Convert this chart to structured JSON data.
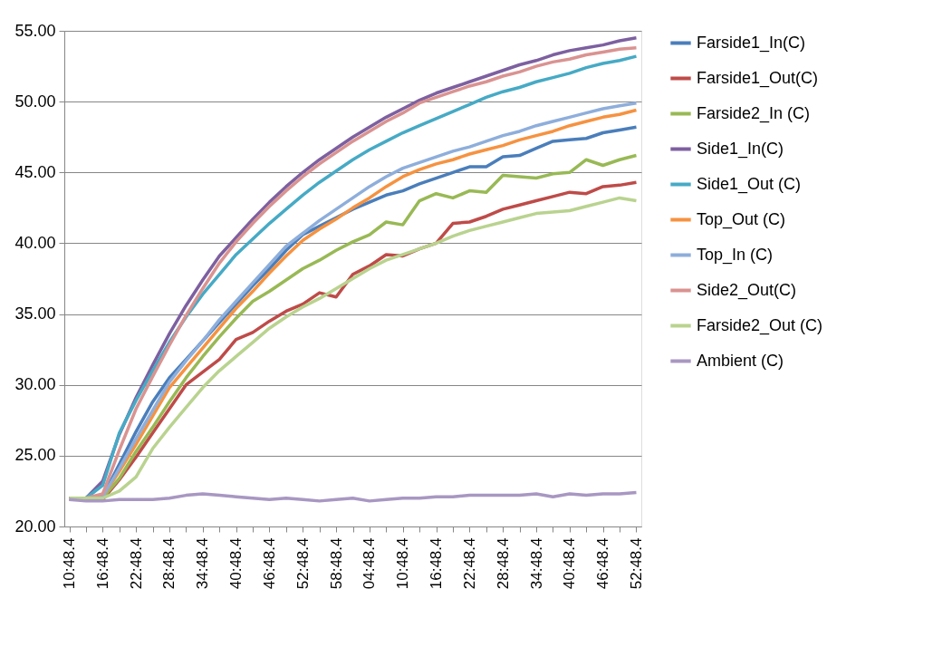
{
  "chart_data": {
    "type": "line",
    "categories": [
      "10:48.4",
      null,
      "16:48.4",
      null,
      "22:48.4",
      null,
      "28:48.4",
      null,
      "34:48.4",
      null,
      "40:48.4",
      null,
      "46:48.4",
      null,
      "52:48.4",
      null,
      "58:48.4",
      null,
      "04:48.4",
      null,
      "10:48.4",
      null,
      "16:48.4",
      null,
      "22:48.4",
      null,
      "28:48.4",
      null,
      "34:48.4",
      null,
      "40:48.4",
      null,
      "46:48.4",
      null,
      "52:48.4"
    ],
    "series": [
      {
        "name": "Farside1_In(C)",
        "color": "#4a7ebb",
        "values": [
          22.0,
          22.0,
          22.1,
          24.4,
          26.7,
          28.8,
          30.5,
          31.8,
          33.1,
          34.4,
          35.7,
          37.0,
          38.2,
          39.5,
          40.6,
          41.2,
          41.8,
          42.4,
          42.9,
          43.4,
          43.7,
          44.2,
          44.6,
          45.0,
          45.4,
          45.4,
          46.1,
          46.2,
          46.7,
          47.2,
          47.3,
          47.4,
          47.8,
          48.0,
          48.2
        ]
      },
      {
        "name": "Farside1_Out(C)",
        "color": "#be4b48",
        "values": [
          21.9,
          21.9,
          21.9,
          23.3,
          24.9,
          26.6,
          28.3,
          30.0,
          30.9,
          31.8,
          33.2,
          33.7,
          34.5,
          35.2,
          35.7,
          36.5,
          36.2,
          37.8,
          38.4,
          39.2,
          39.1,
          39.6,
          40.0,
          41.4,
          41.5,
          41.9,
          42.4,
          42.7,
          43.0,
          43.3,
          43.6,
          43.5,
          44.0,
          44.1,
          44.3
        ]
      },
      {
        "name": "Farside2_In (C)",
        "color": "#98b954",
        "values": [
          22.0,
          22.0,
          22.0,
          23.4,
          25.3,
          27.0,
          28.8,
          30.5,
          32.0,
          33.4,
          34.7,
          35.9,
          36.6,
          37.4,
          38.2,
          38.8,
          39.5,
          40.1,
          40.6,
          41.5,
          41.3,
          43.0,
          43.5,
          43.2,
          43.7,
          43.6,
          44.8,
          44.7,
          44.6,
          44.9,
          45.0,
          45.9,
          45.5,
          45.9,
          46.2
        ]
      },
      {
        "name": "Side1_In(C)",
        "color": "#7d60a0",
        "values": [
          22.0,
          22.0,
          23.2,
          26.5,
          29.1,
          31.4,
          33.6,
          35.6,
          37.4,
          39.1,
          40.4,
          41.7,
          42.9,
          44.0,
          45.0,
          45.9,
          46.7,
          47.5,
          48.2,
          48.9,
          49.5,
          50.1,
          50.6,
          51.0,
          51.4,
          51.8,
          52.2,
          52.6,
          52.9,
          53.3,
          53.6,
          53.8,
          54.0,
          54.3,
          54.5
        ]
      },
      {
        "name": "Side1_Out (C)",
        "color": "#46aac5",
        "values": [
          22.0,
          22.0,
          22.9,
          26.6,
          28.9,
          31.0,
          33.0,
          34.8,
          36.4,
          37.8,
          39.2,
          40.3,
          41.4,
          42.4,
          43.4,
          44.3,
          45.1,
          45.9,
          46.6,
          47.2,
          47.8,
          48.3,
          48.8,
          49.3,
          49.8,
          50.3,
          50.7,
          51.0,
          51.4,
          51.7,
          52.0,
          52.4,
          52.7,
          52.9,
          53.2
        ]
      },
      {
        "name": "Top_Out (C)",
        "color": "#f69240",
        "values": [
          22.0,
          22.0,
          22.1,
          23.9,
          25.8,
          27.8,
          29.8,
          31.2,
          32.6,
          34.0,
          35.4,
          36.6,
          37.9,
          39.1,
          40.2,
          41.0,
          41.7,
          42.5,
          43.2,
          44.0,
          44.7,
          45.2,
          45.6,
          45.9,
          46.3,
          46.6,
          46.9,
          47.3,
          47.6,
          47.9,
          48.3,
          48.6,
          48.9,
          49.1,
          49.4
        ]
      },
      {
        "name": "Top_In (C)",
        "color": "#8eaedb",
        "values": [
          22.0,
          22.0,
          22.1,
          24.1,
          26.2,
          28.2,
          30.2,
          31.7,
          33.1,
          34.6,
          35.9,
          37.2,
          38.5,
          39.8,
          40.7,
          41.6,
          42.4,
          43.2,
          44.0,
          44.7,
          45.3,
          45.7,
          46.1,
          46.5,
          46.8,
          47.2,
          47.6,
          47.9,
          48.3,
          48.6,
          48.9,
          49.2,
          49.5,
          49.7,
          49.9
        ]
      },
      {
        "name": "Side2_Out(C)",
        "color": "#d99391",
        "values": [
          22.0,
          22.0,
          22.3,
          25.4,
          28.3,
          30.6,
          32.8,
          34.9,
          36.8,
          38.6,
          40.1,
          41.4,
          42.6,
          43.7,
          44.7,
          45.6,
          46.4,
          47.2,
          47.9,
          48.6,
          49.2,
          49.9,
          50.3,
          50.7,
          51.1,
          51.4,
          51.8,
          52.1,
          52.5,
          52.8,
          53.0,
          53.3,
          53.5,
          53.7,
          53.8
        ]
      },
      {
        "name": "Farside2_Out (C)",
        "color": "#b9d38f",
        "values": [
          22.0,
          22.0,
          22.0,
          22.5,
          23.5,
          25.5,
          27.0,
          28.4,
          29.8,
          31.0,
          32.0,
          33.0,
          34.0,
          34.8,
          35.5,
          36.1,
          36.8,
          37.5,
          38.2,
          38.8,
          39.2,
          39.6,
          40.0,
          40.5,
          40.9,
          41.2,
          41.5,
          41.8,
          42.1,
          42.2,
          42.3,
          42.6,
          42.9,
          43.2,
          43.0
        ]
      },
      {
        "name": "Ambient (C)",
        "color": "#a897c2",
        "values": [
          21.9,
          21.8,
          21.8,
          21.9,
          21.9,
          21.9,
          22.0,
          22.2,
          22.3,
          22.2,
          22.1,
          22.0,
          21.9,
          22.0,
          21.9,
          21.8,
          21.9,
          22.0,
          21.8,
          21.9,
          22.0,
          22.0,
          22.1,
          22.1,
          22.2,
          22.2,
          22.2,
          22.2,
          22.3,
          22.1,
          22.3,
          22.2,
          22.3,
          22.3,
          22.4
        ]
      }
    ],
    "ylim": [
      20,
      55
    ],
    "yticks": [
      {
        "value": 20,
        "label": "20.00"
      },
      {
        "value": 25,
        "label": "25.00"
      },
      {
        "value": 30,
        "label": "30.00"
      },
      {
        "value": 35,
        "label": "35.00"
      },
      {
        "value": 40,
        "label": "40.00"
      },
      {
        "value": 45,
        "label": "45.00"
      },
      {
        "value": 50,
        "label": "50.00"
      },
      {
        "value": 55,
        "label": "55.00"
      }
    ],
    "grid": "y",
    "legend": "right",
    "marker": "none",
    "line_style": "solid"
  }
}
